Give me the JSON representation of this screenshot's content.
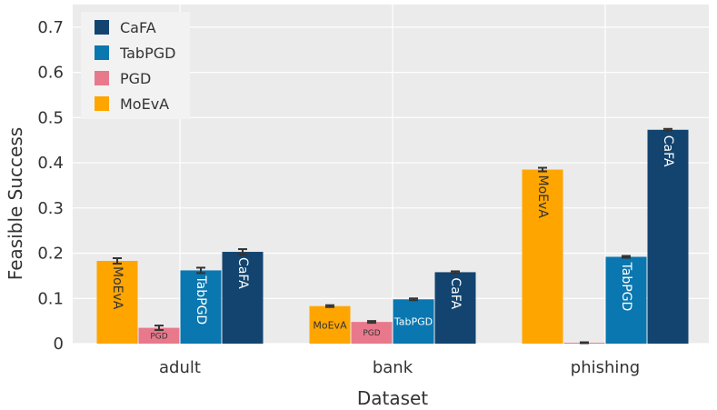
{
  "chart_data": {
    "type": "bar",
    "xlabel": "Dataset",
    "ylabel": "Feasible Success",
    "ylim": [
      0,
      0.75
    ],
    "yticks": [
      0,
      0.1,
      0.2,
      0.3,
      0.4,
      0.5,
      0.6,
      0.7
    ],
    "ytick_labels": [
      "0",
      "0.1",
      "0.2",
      "0.3",
      "0.4",
      "0.5",
      "0.6",
      "0.7"
    ],
    "categories": [
      "adult",
      "bank",
      "phishing"
    ],
    "grid": true,
    "legend_position": "top-left",
    "legend_order": [
      "CaFA",
      "TabPGD",
      "PGD",
      "MoEvA"
    ],
    "series": [
      {
        "name": "MoEvA",
        "color": "#FFA500",
        "values": [
          0.183,
          0.083,
          0.385
        ],
        "errors": [
          0.006,
          0.002,
          0.004
        ]
      },
      {
        "name": "PGD",
        "color": "#E8798C",
        "values": [
          0.035,
          0.048,
          0.002
        ],
        "errors": [
          0.005,
          0.002,
          0.001
        ]
      },
      {
        "name": "TabPGD",
        "color": "#0A77B0",
        "values": [
          0.162,
          0.098,
          0.192
        ],
        "errors": [
          0.006,
          0.002,
          0.002
        ]
      },
      {
        "name": "CaFA",
        "color": "#12446F",
        "values": [
          0.203,
          0.158,
          0.473
        ],
        "errors": [
          0.006,
          0.002,
          0.002
        ]
      }
    ]
  },
  "colors": {
    "plot_background": "#EBEBEB",
    "gridline": "#FFFFFF",
    "legend_background": "#F2F2F2",
    "error_bar": "#333333"
  }
}
